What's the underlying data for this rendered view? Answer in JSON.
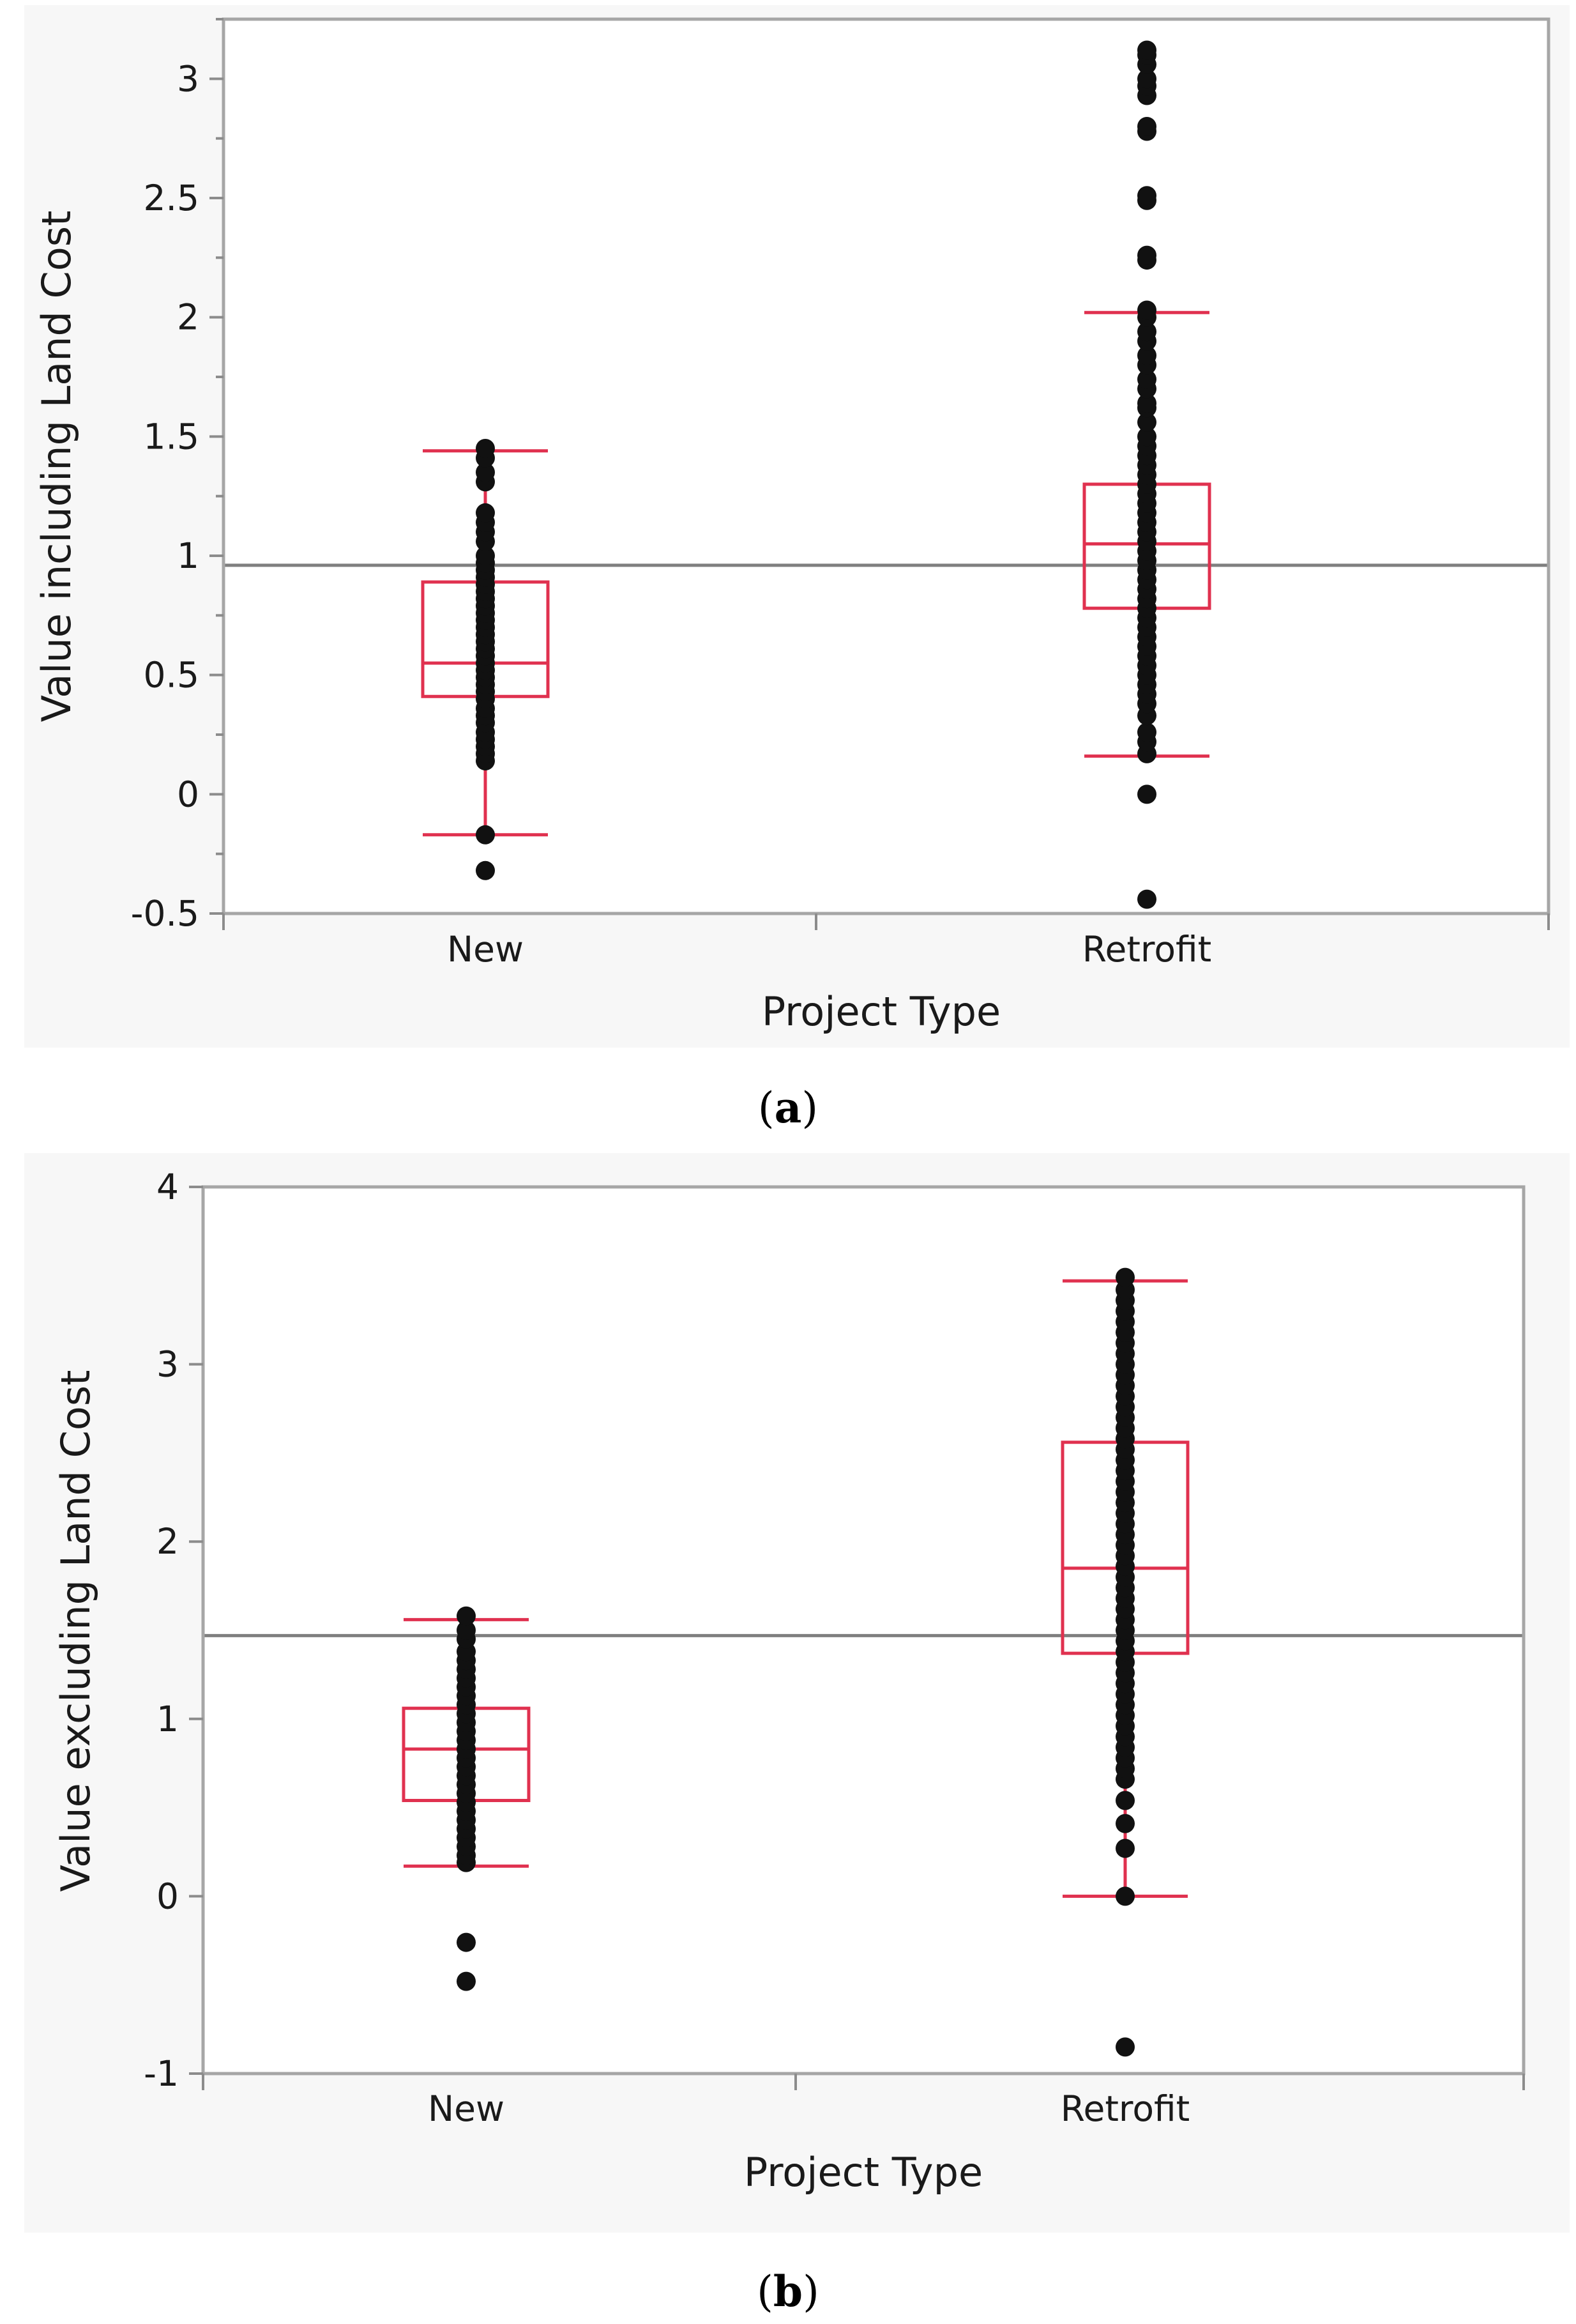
{
  "colors": {
    "panel_background": "#f7f7f7",
    "plot_background": "#ffffff",
    "frame": "#a6a6a6",
    "box": "#e0314f",
    "points": "#111111",
    "mean_line": "#7f7f7f"
  },
  "chart_data": [
    {
      "type": "box",
      "caption": {
        "open": "(",
        "letter": "a",
        "close": ")"
      },
      "xlabel": "Project Type",
      "ylabel": "Value including Land Cost",
      "categories": [
        "New",
        "Retrofit"
      ],
      "ylim": [
        -0.5,
        3.25
      ],
      "yticks": [
        {
          "value": -0.5,
          "label": "-0.5"
        },
        {
          "value": 0,
          "label": "0"
        },
        {
          "value": 0.5,
          "label": "0.5"
        },
        {
          "value": 1,
          "label": "1"
        },
        {
          "value": 1.5,
          "label": "1.5"
        },
        {
          "value": 2,
          "label": "2"
        },
        {
          "value": 2.5,
          "label": "2.5"
        },
        {
          "value": 3,
          "label": "3"
        }
      ],
      "minor_tick_step": 0.25,
      "grand_mean": 0.96,
      "series": [
        {
          "name": "New",
          "whisker_low": -0.17,
          "q1": 0.41,
          "median": 0.55,
          "q3": 0.89,
          "whisker_high": 1.44,
          "points": [
            -0.32,
            -0.17,
            0.14,
            0.17,
            0.2,
            0.23,
            0.26,
            0.3,
            0.33,
            0.36,
            0.4,
            0.43,
            0.46,
            0.49,
            0.52,
            0.55,
            0.58,
            0.61,
            0.64,
            0.67,
            0.7,
            0.73,
            0.76,
            0.79,
            0.82,
            0.85,
            0.88,
            0.91,
            0.94,
            0.97,
            1.0,
            1.06,
            1.1,
            1.14,
            1.18,
            1.31,
            1.35,
            1.41,
            1.45
          ]
        },
        {
          "name": "Retrofit",
          "whisker_low": 0.16,
          "q1": 0.78,
          "median": 1.05,
          "q3": 1.3,
          "whisker_high": 2.02,
          "points": [
            -0.44,
            0.0,
            0.17,
            0.22,
            0.26,
            0.33,
            0.38,
            0.42,
            0.46,
            0.5,
            0.54,
            0.58,
            0.62,
            0.66,
            0.7,
            0.74,
            0.78,
            0.82,
            0.86,
            0.9,
            0.94,
            0.98,
            1.02,
            1.06,
            1.1,
            1.14,
            1.18,
            1.22,
            1.26,
            1.3,
            1.34,
            1.38,
            1.42,
            1.46,
            1.5,
            1.56,
            1.62,
            1.64,
            1.7,
            1.74,
            1.8,
            1.84,
            1.9,
            1.94,
            2.0,
            2.03,
            2.24,
            2.26,
            2.49,
            2.51,
            2.78,
            2.8,
            2.93,
            2.97,
            3.0,
            3.06,
            3.1,
            3.12
          ]
        }
      ]
    },
    {
      "type": "box",
      "caption": {
        "open": "(",
        "letter": "b",
        "close": ")"
      },
      "xlabel": "Project Type",
      "ylabel": "Value excluding Land Cost",
      "categories": [
        "New",
        "Retrofit"
      ],
      "ylim": [
        -1,
        4
      ],
      "yticks": [
        {
          "value": -1,
          "label": "-1"
        },
        {
          "value": 0,
          "label": "0"
        },
        {
          "value": 1,
          "label": "1"
        },
        {
          "value": 2,
          "label": "2"
        },
        {
          "value": 3,
          "label": "3"
        },
        {
          "value": 4,
          "label": "4"
        }
      ],
      "minor_tick_step": 0,
      "grand_mean": 1.47,
      "series": [
        {
          "name": "New",
          "whisker_low": 0.17,
          "q1": 0.54,
          "median": 0.83,
          "q3": 1.06,
          "whisker_high": 1.56,
          "points": [
            -0.48,
            -0.26,
            0.19,
            0.23,
            0.28,
            0.33,
            0.38,
            0.43,
            0.48,
            0.53,
            0.58,
            0.63,
            0.68,
            0.73,
            0.78,
            0.83,
            0.88,
            0.93,
            0.98,
            1.03,
            1.08,
            1.13,
            1.18,
            1.23,
            1.28,
            1.33,
            1.38,
            1.45,
            1.5,
            1.58
          ]
        },
        {
          "name": "Retrofit",
          "whisker_low": 0.0,
          "q1": 1.37,
          "median": 1.85,
          "q3": 2.56,
          "whisker_high": 3.47,
          "points": [
            -0.85,
            0.0,
            0.27,
            0.41,
            0.54,
            0.66,
            0.72,
            0.78,
            0.84,
            0.9,
            0.96,
            1.02,
            1.08,
            1.14,
            1.2,
            1.26,
            1.32,
            1.38,
            1.44,
            1.5,
            1.56,
            1.62,
            1.68,
            1.74,
            1.8,
            1.86,
            1.92,
            1.98,
            2.04,
            2.1,
            2.16,
            2.22,
            2.28,
            2.34,
            2.4,
            2.46,
            2.52,
            2.58,
            2.64,
            2.7,
            2.76,
            2.82,
            2.88,
            2.94,
            3.0,
            3.06,
            3.12,
            3.18,
            3.24,
            3.3,
            3.36,
            3.42,
            3.49
          ]
        }
      ]
    }
  ]
}
